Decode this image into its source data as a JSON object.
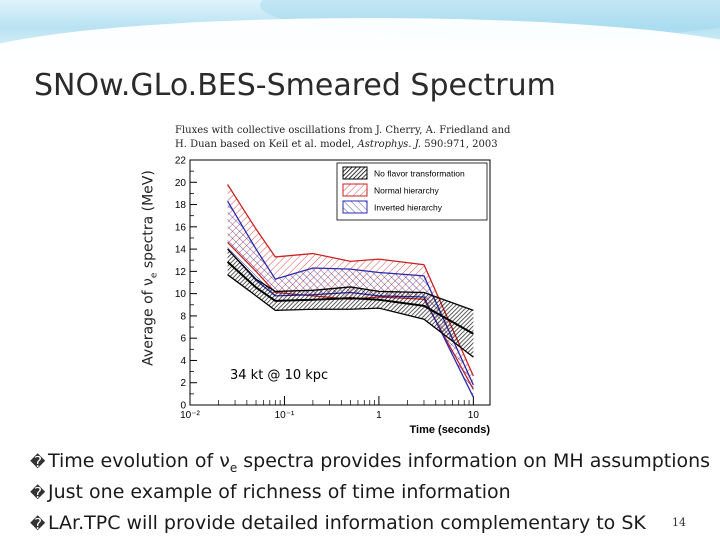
{
  "slide": {
    "title": "SNOw.GLo.BES-Smeared Spectrum",
    "caption_line1": "Fluxes with collective oscillations from J. Cherry, A. Friedland and",
    "caption_line2_prefix": "H. Duan based on Keil et al. model, ",
    "caption_line2_journal": "Astrophys. J.",
    "caption_line2_suffix": " 590:971, 2003",
    "ylabel_prefix": "Average of ν",
    "ylabel_sub": "e",
    "ylabel_suffix": " spectra (MeV)",
    "bullets": [
      {
        "mark": "�",
        "text_before": "Time evolution of ν",
        "sub": "e",
        "text_after": " spectra provides information on MH assumptions"
      },
      {
        "mark": "�",
        "text_before": "Just one example of richness of time information",
        "sub": "",
        "text_after": ""
      },
      {
        "mark": "�",
        "text_before": "LAr.TPC will provide detailed information complementary to SK",
        "sub": "",
        "text_after": ""
      }
    ],
    "page_number": "14"
  },
  "colors": {
    "no_flavor": "#000000",
    "normal": "#cc2222",
    "inverted": "#2a2ab0",
    "title": "#2b2b2b"
  },
  "chart_data": {
    "type": "line",
    "x_scale": "log",
    "xlim": [
      0.01,
      15
    ],
    "ylim": [
      0,
      22
    ],
    "xlabel": "Time (seconds)",
    "ylabel": "Average of νe spectra (MeV)",
    "xticks": [
      0.01,
      0.1,
      1,
      10
    ],
    "xtick_labels": [
      "10⁻²",
      "10⁻¹",
      "1",
      "10"
    ],
    "yticks": [
      0,
      2,
      4,
      6,
      8,
      10,
      12,
      14,
      16,
      18,
      20,
      22
    ],
    "legend_position": "top-right",
    "annotation": "34 kt @ 10 kpc",
    "x": [
      0.025,
      0.05,
      0.08,
      0.2,
      0.5,
      1,
      3,
      10
    ],
    "series": [
      {
        "name": "No flavor transformation",
        "color": "#000000",
        "lower": [
          11.7,
          9.8,
          8.5,
          8.6,
          8.6,
          8.7,
          7.7,
          4.3
        ],
        "upper": [
          14.0,
          11.3,
          10.2,
          10.3,
          10.6,
          10.2,
          10.1,
          8.5
        ]
      },
      {
        "name": "Normal hierarchy",
        "color": "#cc2222",
        "lower": [
          14.6,
          12.0,
          10.1,
          9.8,
          9.5,
          9.7,
          9.5,
          1.4
        ],
        "upper": [
          19.8,
          15.8,
          13.3,
          13.6,
          12.9,
          13.1,
          12.6,
          2.6
        ]
      },
      {
        "name": "Inverted hierarchy",
        "color": "#2a2ab0",
        "lower": [
          14.0,
          11.2,
          9.8,
          9.9,
          10.1,
          9.8,
          9.7,
          0.7
        ],
        "upper": [
          18.3,
          14.0,
          11.3,
          12.3,
          12.2,
          11.9,
          11.6,
          1.8
        ]
      }
    ]
  }
}
